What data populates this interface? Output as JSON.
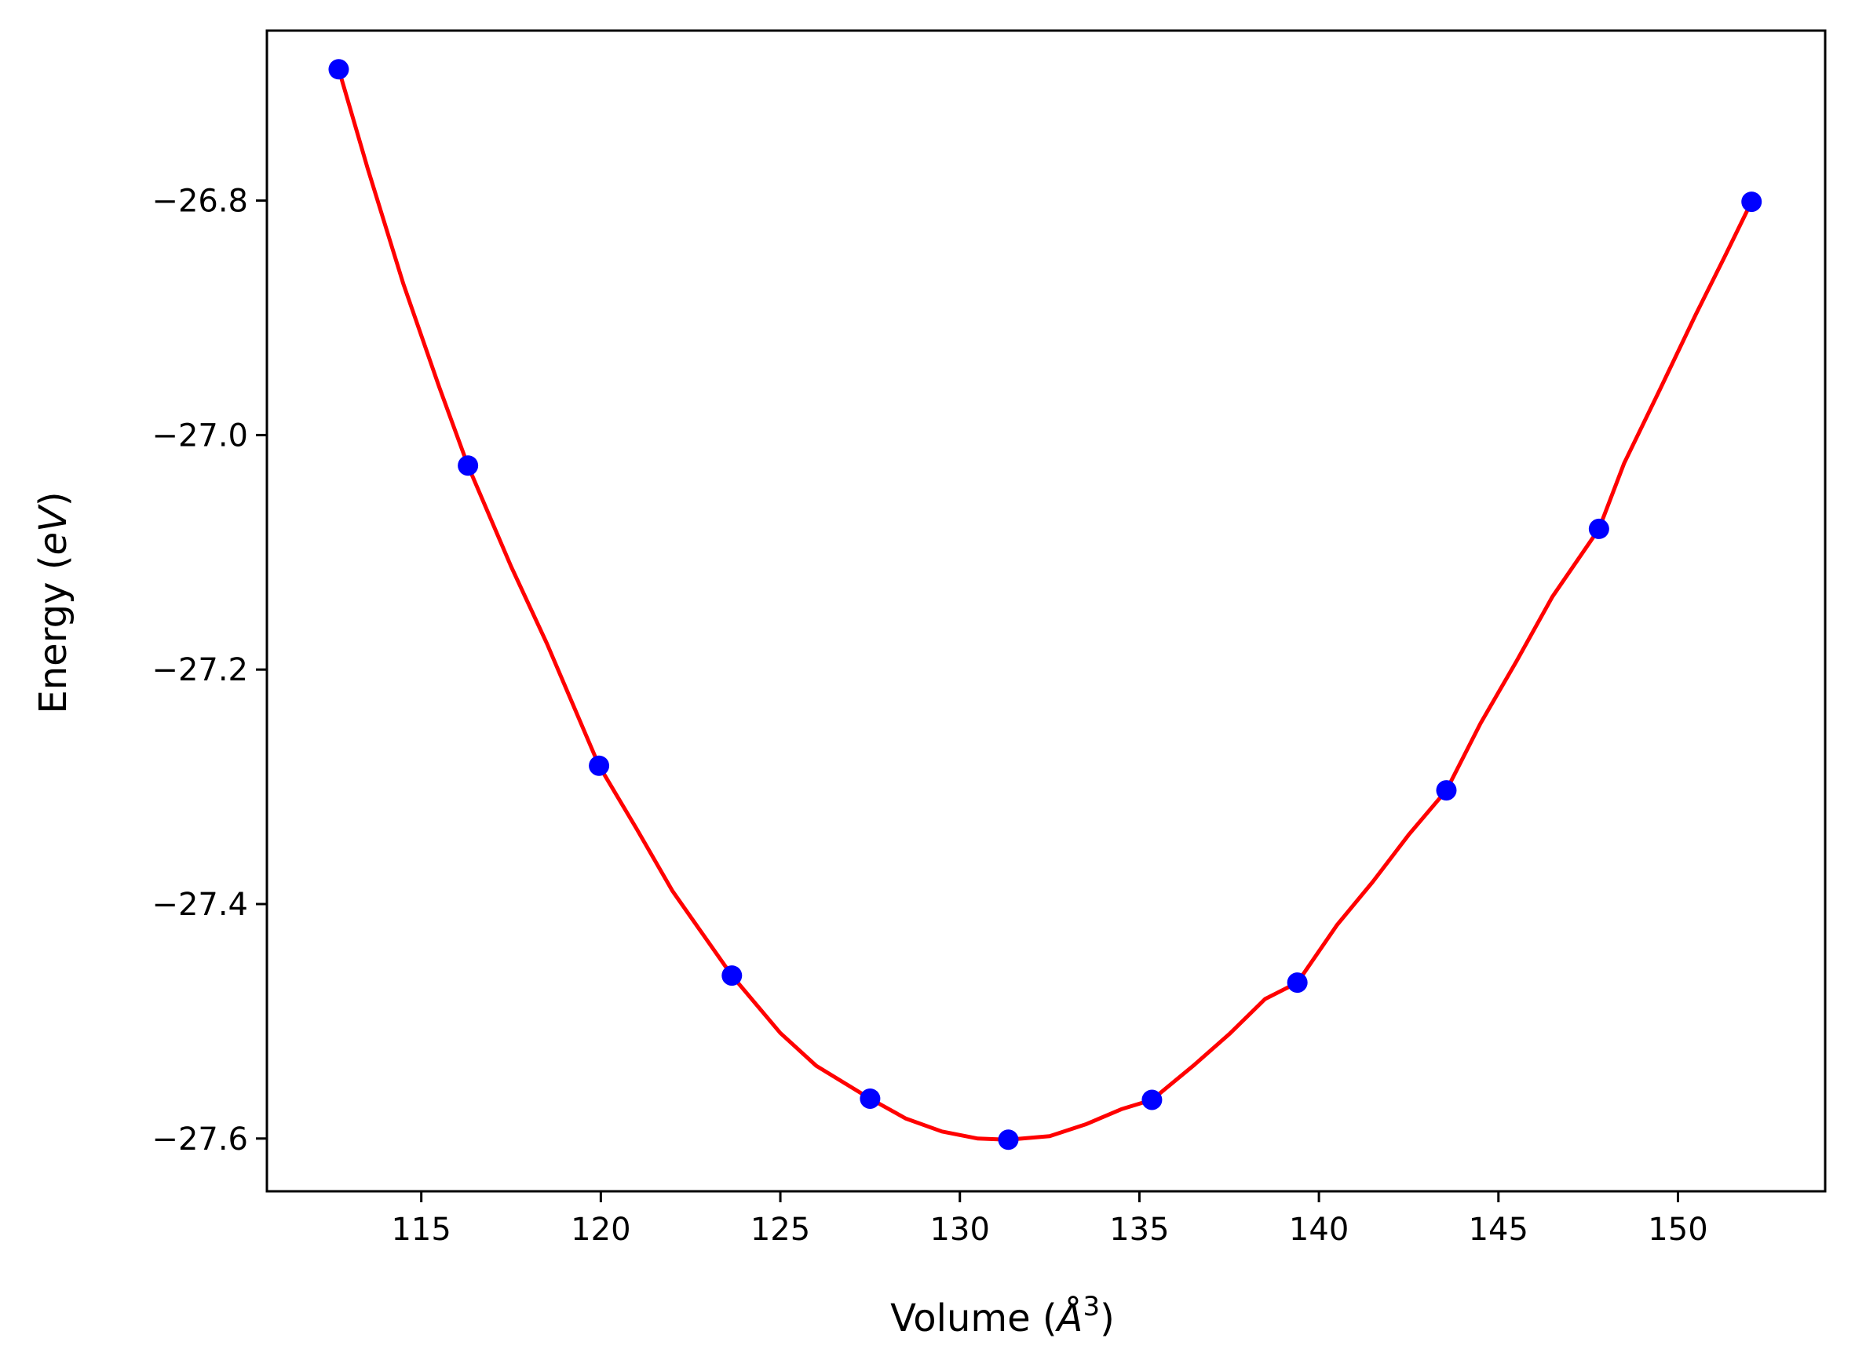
{
  "chart_data": {
    "type": "scatter",
    "xlabel": {
      "prefix": "Volume (",
      "unit_main": "Å",
      "unit_sup": "3",
      "suffix": ")"
    },
    "ylabel": {
      "prefix": "Energy (",
      "unit": "eV",
      "suffix": ")"
    },
    "xlim": [
      110.7,
      154.1
    ],
    "ylim": [
      -27.645,
      -26.655
    ],
    "x_ticks": [
      115,
      120,
      125,
      130,
      135,
      140,
      145,
      150
    ],
    "x_tick_labels": [
      "115",
      "120",
      "125",
      "130",
      "135",
      "140",
      "145",
      "150"
    ],
    "y_ticks": [
      -26.8,
      -27.0,
      -27.2,
      -27.4,
      -27.6
    ],
    "y_tick_labels": [
      "−26.8",
      "−27.0",
      "−27.2",
      "−27.4",
      "−27.6"
    ],
    "grid": false,
    "series": [
      {
        "kind": "points",
        "color": "#0000ff",
        "x": [
          112.7,
          116.3,
          119.95,
          123.65,
          127.5,
          131.35,
          135.35,
          139.4,
          143.55,
          147.8,
          152.05
        ],
        "y": [
          -26.688,
          -27.026,
          -27.282,
          -27.461,
          -27.566,
          -27.601,
          -27.567,
          -27.467,
          -27.303,
          -27.08,
          -26.801
        ]
      },
      {
        "kind": "fit-curve",
        "color": "#ff0000",
        "x": [
          112.7,
          113.5,
          114.5,
          115.5,
          116.3,
          117.5,
          118.5,
          119.95,
          121.0,
          122.0,
          123.65,
          125.0,
          126.0,
          127.5,
          128.5,
          129.5,
          130.5,
          131.35,
          132.5,
          133.5,
          134.5,
          135.35,
          136.5,
          137.5,
          138.5,
          139.4,
          140.5,
          141.5,
          142.5,
          143.55,
          144.5,
          145.5,
          146.5,
          147.8,
          148.5,
          149.5,
          150.5,
          151.3,
          152.05
        ],
        "y": [
          -26.688,
          -26.772,
          -26.871,
          -26.959,
          -27.026,
          -27.112,
          -27.178,
          -27.282,
          -27.336,
          -27.389,
          -27.461,
          -27.51,
          -27.538,
          -27.566,
          -27.583,
          -27.594,
          -27.6,
          -27.601,
          -27.598,
          -27.588,
          -27.575,
          -27.567,
          -27.538,
          -27.511,
          -27.481,
          -27.467,
          -27.418,
          -27.381,
          -27.341,
          -27.303,
          -27.246,
          -27.193,
          -27.138,
          -27.08,
          -27.024,
          -26.961,
          -26.897,
          -26.848,
          -26.801
        ]
      }
    ]
  }
}
